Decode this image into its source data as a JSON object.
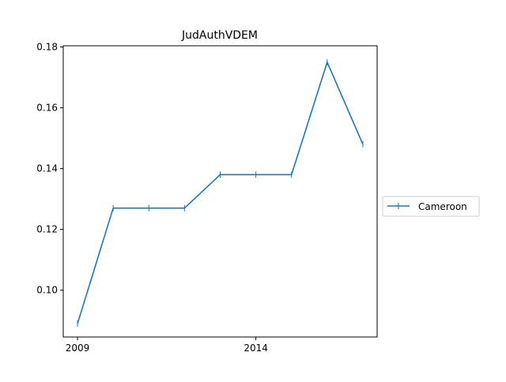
{
  "chart_data": {
    "type": "line",
    "title": "JudAuthVDEM",
    "xlabel": "",
    "ylabel": "",
    "x": [
      2009,
      2010,
      2011,
      2012,
      2013,
      2014,
      2015,
      2016,
      2017
    ],
    "series": [
      {
        "name": "Cameroon",
        "color": "#1f77b4",
        "marker": "vertical-tick",
        "values": [
          0.089,
          0.127,
          0.127,
          0.127,
          0.138,
          0.138,
          0.138,
          0.175,
          0.148
        ]
      }
    ],
    "xlim": [
      2008.6,
      2017.4
    ],
    "ylim": [
      0.0846,
      0.1804
    ],
    "x_ticks": [
      2009,
      2014
    ],
    "x_tick_labels": [
      "2009",
      "2014"
    ],
    "y_ticks": [
      0.1,
      0.12,
      0.14,
      0.16,
      0.18
    ],
    "y_tick_labels": [
      "0.10",
      "0.12",
      "0.14",
      "0.16",
      "0.18"
    ],
    "grid": false,
    "legend_position": "right"
  }
}
